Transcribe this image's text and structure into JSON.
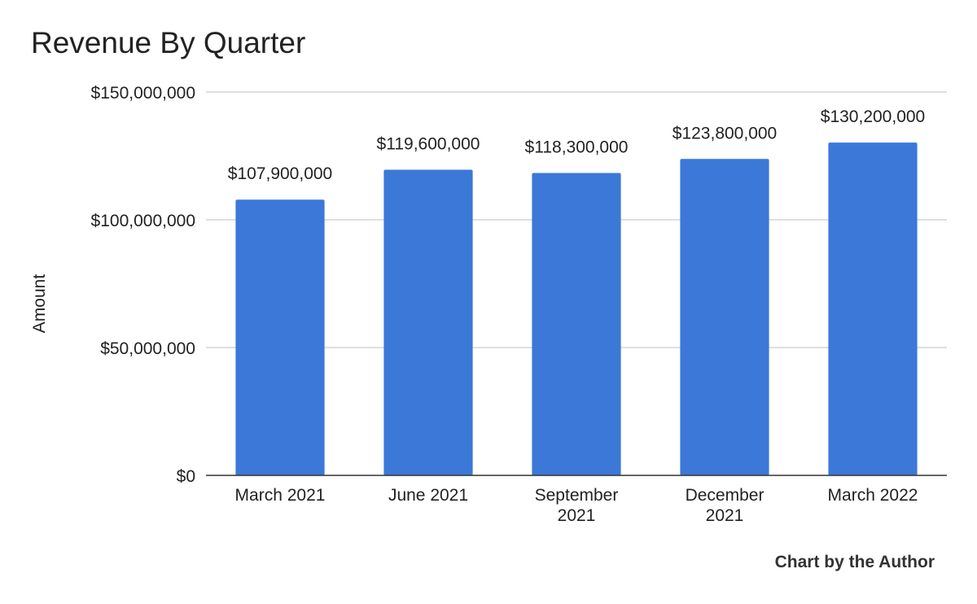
{
  "chart_data": {
    "type": "bar",
    "title": "Revenue By Quarter",
    "xlabel": "",
    "ylabel": "Amount",
    "categories": [
      [
        "March 2021"
      ],
      [
        "June 2021"
      ],
      [
        "September",
        "2021"
      ],
      [
        "December",
        "2021"
      ],
      [
        "March 2022"
      ]
    ],
    "values": [
      107900000,
      119600000,
      118300000,
      123800000,
      130200000
    ],
    "value_labels": [
      "$107,900,000",
      "$119,600,000",
      "$118,300,000",
      "$123,800,000",
      "$130,200,000"
    ],
    "ylim": [
      0,
      150000000
    ],
    "yticks": [
      0,
      50000000,
      100000000,
      150000000
    ],
    "ytick_labels": [
      "$0",
      "$50,000,000",
      "$100,000,000",
      "$150,000,000"
    ],
    "grid": true,
    "legend": "none",
    "colors": {
      "bar": "#3c78d8",
      "grid": "#cccccc",
      "axis": "#333333",
      "text": "#222222"
    }
  },
  "credit": "Chart by the Author"
}
